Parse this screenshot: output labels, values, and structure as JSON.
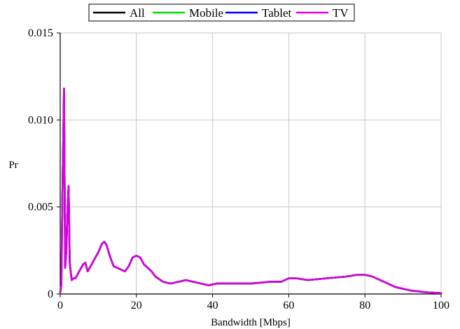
{
  "chart_data": {
    "type": "line",
    "xlabel": "Bandwidth [Mbps]",
    "ylabel": "Pr",
    "xlim": [
      0,
      100
    ],
    "ylim": [
      0,
      0.015
    ],
    "x_ticks": [
      0,
      20,
      40,
      60,
      80,
      100
    ],
    "x_tick_labels": [
      "0",
      "20",
      "40",
      "60",
      "80",
      "100"
    ],
    "y_ticks": [
      0,
      0.005,
      0.01,
      0.015
    ],
    "y_tick_labels": [
      "0",
      "0.005",
      "0.010",
      "0.015"
    ],
    "grid": true,
    "legend_position": "top",
    "series": [
      {
        "name": "All",
        "color": "#000000",
        "x": [
          0,
          0.3,
          0.6,
          1.0,
          1.3,
          1.6,
          1.9,
          2.2,
          2.5,
          3.0,
          3.5,
          4.0,
          5.0,
          6.0,
          6.6,
          7.2,
          8.0,
          9.0,
          10.0,
          11.0,
          11.6,
          12.2,
          13.0,
          14.0,
          15.0,
          16.0,
          17.0,
          18.0,
          19.0,
          20.0,
          21.0,
          22.0,
          23.0,
          24.0,
          25.0,
          27.0,
          29.0,
          31.0,
          33.0,
          35.0,
          37.0,
          39.0,
          41.0,
          45.0,
          50.0,
          55.0,
          58.0,
          60.0,
          62.0,
          65.0,
          70.0,
          75.0,
          78.0,
          80.0,
          82.0,
          85.0,
          88.0,
          92.0,
          96.0,
          100.0
        ],
        "y": [
          0.0001,
          0.0005,
          0.006,
          0.0118,
          0.0015,
          0.0025,
          0.0048,
          0.0062,
          0.0018,
          0.0008,
          0.0009,
          0.0009,
          0.0013,
          0.0017,
          0.0018,
          0.0013,
          0.0016,
          0.002,
          0.0024,
          0.0029,
          0.003,
          0.0028,
          0.0022,
          0.0016,
          0.0015,
          0.0014,
          0.0013,
          0.0016,
          0.0021,
          0.0022,
          0.0021,
          0.0017,
          0.0015,
          0.0013,
          0.001,
          0.0007,
          0.0006,
          0.0007,
          0.0008,
          0.0007,
          0.0006,
          0.0005,
          0.0006,
          0.0006,
          0.0006,
          0.0007,
          0.0007,
          0.0009,
          0.0009,
          0.0008,
          0.0009,
          0.001,
          0.0011,
          0.0011,
          0.001,
          0.0007,
          0.0004,
          0.0002,
          0.0001,
          5e-05
        ]
      },
      {
        "name": "Mobile",
        "color": "#00dd00",
        "x": [
          0,
          0.3,
          0.6,
          1.0,
          1.3,
          1.6,
          1.9,
          2.2,
          2.5,
          3.0,
          3.5,
          4.0,
          5.0,
          6.0,
          6.6,
          7.2,
          8.0,
          9.0,
          10.0,
          11.0,
          11.6,
          12.2,
          13.0,
          14.0,
          15.0,
          16.0,
          17.0,
          18.0,
          19.0,
          20.0,
          21.0,
          22.0,
          23.0,
          24.0,
          25.0,
          27.0,
          29.0,
          31.0,
          33.0,
          35.0,
          37.0,
          39.0,
          41.0,
          45.0,
          50.0,
          55.0,
          58.0,
          60.0,
          62.0,
          65.0,
          70.0,
          75.0,
          78.0,
          80.0,
          82.0,
          85.0,
          88.0,
          92.0,
          96.0,
          100.0
        ],
        "y": [
          0.0001,
          0.0005,
          0.006,
          0.0118,
          0.0015,
          0.0025,
          0.0048,
          0.0062,
          0.0018,
          0.0008,
          0.0009,
          0.0009,
          0.0013,
          0.0017,
          0.0018,
          0.0013,
          0.0016,
          0.002,
          0.0024,
          0.0029,
          0.003,
          0.0028,
          0.0022,
          0.0016,
          0.0015,
          0.0014,
          0.0013,
          0.0016,
          0.0021,
          0.0022,
          0.0021,
          0.0017,
          0.0015,
          0.0013,
          0.001,
          0.0007,
          0.0006,
          0.0007,
          0.0008,
          0.0007,
          0.0006,
          0.0005,
          0.0006,
          0.0006,
          0.0006,
          0.0007,
          0.0007,
          0.0009,
          0.0009,
          0.0008,
          0.0009,
          0.001,
          0.0011,
          0.0011,
          0.001,
          0.0007,
          0.0004,
          0.0002,
          0.0001,
          5e-05
        ]
      },
      {
        "name": "Tablet",
        "color": "#0000ee",
        "x": [
          0,
          0.3,
          0.6,
          1.0,
          1.3,
          1.6,
          1.9,
          2.2,
          2.5,
          3.0,
          3.5,
          4.0,
          5.0,
          6.0,
          6.6,
          7.2,
          8.0,
          9.0,
          10.0,
          11.0,
          11.6,
          12.2,
          13.0,
          14.0,
          15.0,
          16.0,
          17.0,
          18.0,
          19.0,
          20.0,
          21.0,
          22.0,
          23.0,
          24.0,
          25.0,
          27.0,
          29.0,
          31.0,
          33.0,
          35.0,
          37.0,
          39.0,
          41.0,
          45.0,
          50.0,
          55.0,
          58.0,
          60.0,
          62.0,
          65.0,
          70.0,
          75.0,
          78.0,
          80.0,
          82.0,
          85.0,
          88.0,
          92.0,
          96.0,
          100.0
        ],
        "y": [
          0.0001,
          0.0005,
          0.006,
          0.0118,
          0.0015,
          0.0025,
          0.0048,
          0.0062,
          0.0018,
          0.0008,
          0.0009,
          0.0009,
          0.0013,
          0.0017,
          0.0018,
          0.0013,
          0.0016,
          0.002,
          0.0024,
          0.0029,
          0.003,
          0.0028,
          0.0022,
          0.0016,
          0.0015,
          0.0014,
          0.0013,
          0.0016,
          0.0021,
          0.0022,
          0.0021,
          0.0017,
          0.0015,
          0.0013,
          0.001,
          0.0007,
          0.0006,
          0.0007,
          0.0008,
          0.0007,
          0.0006,
          0.0005,
          0.0006,
          0.0006,
          0.0006,
          0.0007,
          0.0007,
          0.0009,
          0.0009,
          0.0008,
          0.0009,
          0.001,
          0.0011,
          0.0011,
          0.001,
          0.0007,
          0.0004,
          0.0002,
          0.0001,
          5e-05
        ]
      },
      {
        "name": "TV",
        "color": "#dd00dd",
        "x": [
          0,
          0.3,
          0.6,
          1.0,
          1.3,
          1.6,
          1.9,
          2.2,
          2.5,
          3.0,
          3.5,
          4.0,
          5.0,
          6.0,
          6.6,
          7.2,
          8.0,
          9.0,
          10.0,
          11.0,
          11.6,
          12.2,
          13.0,
          14.0,
          15.0,
          16.0,
          17.0,
          18.0,
          19.0,
          20.0,
          21.0,
          22.0,
          23.0,
          24.0,
          25.0,
          27.0,
          29.0,
          31.0,
          33.0,
          35.0,
          37.0,
          39.0,
          41.0,
          45.0,
          50.0,
          55.0,
          58.0,
          60.0,
          62.0,
          65.0,
          70.0,
          75.0,
          78.0,
          80.0,
          82.0,
          85.0,
          88.0,
          92.0,
          96.0,
          100.0
        ],
        "y": [
          0.0001,
          0.0005,
          0.006,
          0.0118,
          0.0015,
          0.0025,
          0.0048,
          0.0062,
          0.0018,
          0.0008,
          0.0009,
          0.0009,
          0.0013,
          0.0017,
          0.0018,
          0.0013,
          0.0016,
          0.002,
          0.0024,
          0.0029,
          0.003,
          0.0028,
          0.0022,
          0.0016,
          0.0015,
          0.0014,
          0.0013,
          0.0016,
          0.0021,
          0.0022,
          0.0021,
          0.0017,
          0.0015,
          0.0013,
          0.001,
          0.0007,
          0.0006,
          0.0007,
          0.0008,
          0.0007,
          0.0006,
          0.0005,
          0.0006,
          0.0006,
          0.0006,
          0.0007,
          0.0007,
          0.0009,
          0.0009,
          0.0008,
          0.0009,
          0.001,
          0.0011,
          0.0011,
          0.001,
          0.0007,
          0.0004,
          0.0002,
          0.0001,
          5e-05
        ]
      }
    ]
  }
}
